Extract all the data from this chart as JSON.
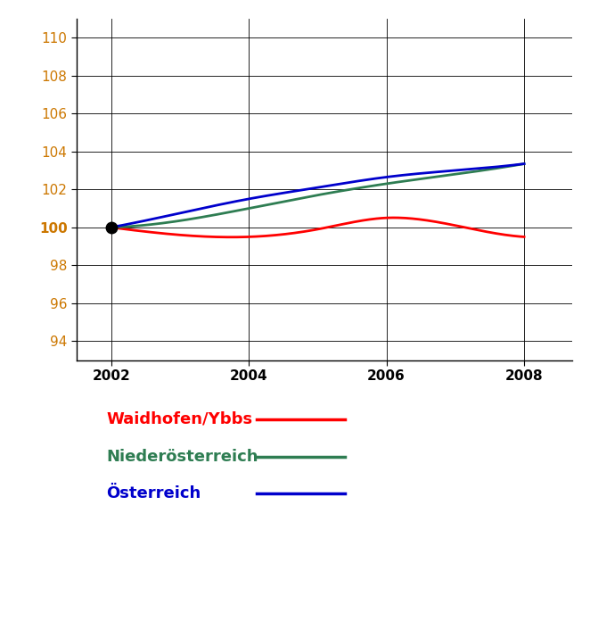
{
  "years": [
    2002,
    2003,
    2004,
    2005,
    2006,
    2007,
    2008
  ],
  "waidhofen": [
    100,
    99.6,
    99.5,
    99.9,
    100.5,
    100.1,
    99.5
  ],
  "niederoesterreich": [
    100,
    100.35,
    101.0,
    101.7,
    102.3,
    102.8,
    103.35
  ],
  "oesterreich": [
    100,
    100.75,
    101.5,
    102.1,
    102.65,
    103.0,
    103.35
  ],
  "waidhofen_color": "#FF0000",
  "niederoesterreich_color": "#2E7D52",
  "oesterreich_color": "#0000CC",
  "marker_color": "#000000",
  "ytick_color": "#CC7700",
  "xtick_color": "#000000",
  "ylim": [
    93,
    111
  ],
  "yticks": [
    94,
    96,
    98,
    100,
    102,
    104,
    106,
    108,
    110
  ],
  "xticks": [
    2002,
    2004,
    2006,
    2008
  ],
  "legend_labels": [
    "Waidhofen/Ybbs",
    "Niederösterreich",
    "Österreich"
  ],
  "legend_colors": [
    "#FF0000",
    "#2E7D52",
    "#0000CC"
  ],
  "grid_color": "#000000",
  "background_color": "#FFFFFF",
  "line_width": 2.0,
  "tick_fontsize": 11,
  "legend_fontsize": 13
}
